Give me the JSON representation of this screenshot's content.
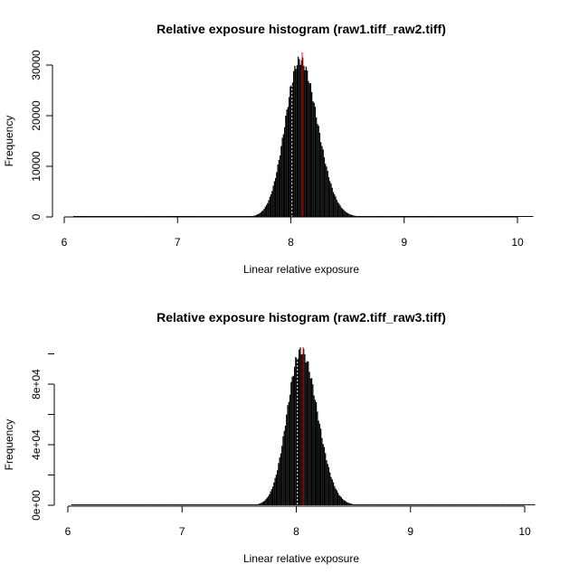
{
  "chart_data": [
    {
      "type": "histogram",
      "title": "Relative exposure histogram (raw1.tiff_raw2.tiff)",
      "xlabel": "Linear relative exposure",
      "ylabel": "Frequency",
      "xlim": [
        6,
        10
      ],
      "ylim": [
        0,
        30000
      ],
      "x_ticks": [
        6,
        7,
        8,
        9,
        10
      ],
      "x_tick_labels": [
        "6",
        "7",
        "8",
        "9",
        "10"
      ],
      "y_ticks": [
        0,
        10000,
        20000,
        30000
      ],
      "y_tick_labels": [
        "0",
        "10000",
        "20000",
        "30000"
      ],
      "grid": false,
      "data_range": [
        6.08,
        10.13
      ],
      "distribution": {
        "peak_x": 8.08,
        "peak_count": 31000,
        "sd_left": 0.13,
        "sd_right": 0.155
      },
      "reference_lines": [
        {
          "x": 8.1,
          "color": "#ff0000",
          "style": "solid"
        },
        {
          "x": 8.01,
          "color": "#ffffff",
          "style": "dotted"
        }
      ]
    },
    {
      "type": "histogram",
      "title": "Relative exposure histogram (raw2.tiff_raw3.tiff)",
      "xlabel": "Linear relative exposure",
      "ylabel": "Frequency",
      "xlim": [
        6,
        10
      ],
      "ylim": [
        0,
        80000
      ],
      "x_ticks": [
        6,
        7,
        8,
        9,
        10
      ],
      "x_tick_labels": [
        "6",
        "7",
        "8",
        "9",
        "10"
      ],
      "y_ticks": [
        0,
        40000,
        80000
      ],
      "y_tick_labels": [
        "0e+00",
        "4e+04",
        "8e+04"
      ],
      "grid": false,
      "data_range": [
        6.03,
        10.08
      ],
      "distribution": {
        "peak_x": 8.04,
        "peak_count": 102000,
        "sd_left": 0.12,
        "sd_right": 0.145
      },
      "reference_lines": [
        {
          "x": 8.06,
          "color": "#ff0000",
          "style": "solid"
        },
        {
          "x": 8.01,
          "color": "#ffffff",
          "style": "dotted"
        }
      ]
    }
  ]
}
